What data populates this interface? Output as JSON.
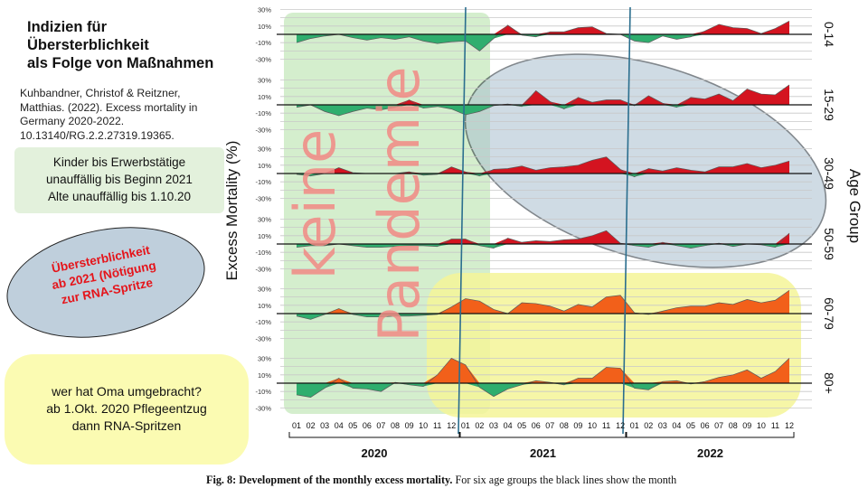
{
  "annotations": {
    "title": "Indizien für\nÜbersterblichkeit\nals Folge von Maßnahmen",
    "citation": "Kuhbandner, Christof & Reitzner,\nMatthias. (2022). Excess mortality in\nGermany 2020-2022.\n10.13140/RG.2.2.27319.19365.",
    "green_box": "Kinder bis Erwerbstätige\nunauffällig bis Beginn 2021\nAlte unauffällig  bis 1.10.20",
    "blue_ellipse": "Übersterblichkeit\nab 2021 (Nötigung\nzur RNA-Spritze",
    "yellow_box": "wer hat Oma umgebracht?\nab 1.Okt. 2020 Pflegeentzug\ndann RNA-Spritzen",
    "overlay_word_1": "keine",
    "overlay_word_2": "Pandemie"
  },
  "caption": {
    "bold": "Fig. 8: Development of the monthly excess mortality.",
    "rest": " For six age groups the black lines show the month"
  },
  "colors": {
    "positive_young": "#d41420",
    "positive_old": "#f2601a",
    "negative": "#2fae6e",
    "green_zone": "#cdebc4",
    "yellow_zone": "#f5f598",
    "blue_ellipse": "#a9bfcf",
    "divider": "#2a6e8e",
    "overlay_text": "#f28a85"
  },
  "chart_data": {
    "type": "area",
    "title": "",
    "ylabel": "Excess Mortality (%)",
    "xlabel": "",
    "right_label": "Age Group",
    "ylim": [
      -30,
      30
    ],
    "y_ticks": [
      "30%",
      "10%",
      "-10%",
      "-30%"
    ],
    "years": [
      "2020",
      "2021",
      "2022"
    ],
    "months": [
      "01",
      "02",
      "03",
      "04",
      "05",
      "06",
      "07",
      "08",
      "09",
      "10",
      "11",
      "12"
    ],
    "series": [
      {
        "name": "0-14",
        "values": [
          -10,
          -5,
          -2,
          0,
          -4,
          -7,
          -4,
          -6,
          -3,
          -8,
          -11,
          -9,
          -8,
          -20,
          -5,
          11,
          -1,
          -3,
          3,
          3,
          8,
          9,
          1,
          0,
          -8,
          -10,
          -2,
          -6,
          -3,
          4,
          12,
          8,
          7,
          1,
          7,
          16
        ]
      },
      {
        "name": "15-29",
        "values": [
          -3,
          0,
          -8,
          -13,
          -8,
          -4,
          -6,
          -3,
          6,
          -4,
          -2,
          -5,
          -12,
          -8,
          -1,
          1,
          -2,
          17,
          4,
          -5,
          9,
          3,
          6,
          6,
          -1,
          11,
          2,
          -3,
          9,
          7,
          13,
          5,
          19,
          13,
          12,
          24
        ]
      },
      {
        "name": "30-49",
        "values": [
          -1,
          -3,
          0,
          7,
          1,
          0,
          0,
          0,
          2,
          -2,
          -1,
          8,
          2,
          -3,
          5,
          6,
          9,
          4,
          7,
          8,
          10,
          16,
          20,
          5,
          -4,
          6,
          3,
          7,
          4,
          2,
          8,
          8,
          12,
          7,
          10,
          15
        ]
      },
      {
        "name": "50-59",
        "values": [
          -4,
          -2,
          -2,
          0,
          -2,
          -4,
          -4,
          -3,
          -2,
          -2,
          -3,
          6,
          6,
          -2,
          -5,
          7,
          2,
          4,
          3,
          5,
          6,
          10,
          16,
          1,
          -2,
          -4,
          2,
          -2,
          -5,
          -2,
          1,
          -3,
          0,
          -1,
          -4,
          13
        ]
      },
      {
        "name": "60-79",
        "values": [
          -3,
          -7,
          -1,
          6,
          -1,
          -4,
          -4,
          -3,
          -3,
          -2,
          -1,
          8,
          18,
          15,
          5,
          0,
          13,
          12,
          9,
          3,
          11,
          8,
          20,
          22,
          1,
          -1,
          3,
          7,
          9,
          9,
          13,
          11,
          17,
          13,
          16,
          28
        ]
      },
      {
        "name": "80+",
        "values": [
          -14,
          -17,
          -6,
          6,
          -6,
          -7,
          -10,
          1,
          -2,
          -4,
          10,
          30,
          22,
          -5,
          -16,
          -7,
          -2,
          3,
          1,
          -2,
          6,
          6,
          19,
          18,
          -6,
          -8,
          2,
          3,
          -1,
          2,
          7,
          10,
          16,
          6,
          14,
          30
        ]
      }
    ]
  }
}
